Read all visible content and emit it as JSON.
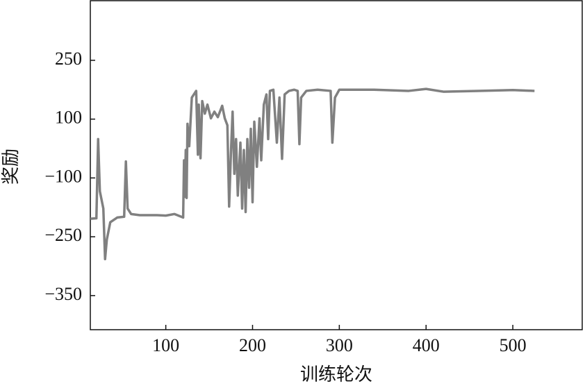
{
  "chart_data": {
    "type": "line",
    "x_label": "训练轮次",
    "y_label": "奖励",
    "xlim": [
      13,
      580
    ],
    "xticks": [
      100,
      200,
      300,
      400,
      500
    ],
    "ylim": [
      -408,
      402
    ],
    "yticks": [
      {
        "value": -350,
        "label": "−350"
      },
      {
        "value": -250,
        "label": "−250"
      },
      {
        "value": -100,
        "label": "−100"
      },
      {
        "value": 100,
        "label": "100"
      },
      {
        "value": 250,
        "label": "250"
      }
    ],
    "series": [
      {
        "color": "#808080",
        "x": [
          13,
          20,
          22,
          24,
          28,
          30,
          32,
          36,
          44,
          52,
          54,
          56,
          60,
          70,
          90,
          100,
          110,
          120,
          121,
          122,
          123,
          124,
          125,
          127,
          130,
          135,
          137,
          138,
          140,
          142,
          145,
          148,
          152,
          156,
          160,
          165,
          168,
          171,
          173,
          175,
          177,
          179,
          181,
          183,
          186,
          188,
          190,
          192,
          194,
          196,
          198,
          200,
          202,
          205,
          208,
          210,
          213,
          216,
          218,
          220,
          224,
          228,
          231,
          234,
          237,
          242,
          248,
          252,
          254,
          256,
          262,
          275,
          290,
          292,
          295,
          300,
          340,
          380,
          400,
          420,
          460,
          500,
          525
        ],
        "values": [
          -204,
          -203,
          32,
          -134,
          -178,
          -288,
          -255,
          -213,
          -201,
          -199,
          -44,
          -178,
          -192,
          -195,
          -195,
          -196,
          -192,
          -201,
          -40,
          -148,
          -5,
          -151,
          84,
          8,
          155,
          172,
          -21,
          137,
          -33,
          146,
          114,
          137,
          102,
          119,
          105,
          134,
          102,
          79,
          -173,
          -21,
          119,
          -86,
          32,
          -145,
          20,
          -178,
          -5,
          -187,
          32,
          -125,
          67,
          -162,
          91,
          -62,
          102,
          -40,
          137,
          163,
          32,
          172,
          175,
          20,
          155,
          -35,
          163,
          172,
          175,
          172,
          15,
          155,
          172,
          175,
          172,
          20,
          155,
          175,
          175,
          172,
          177,
          170,
          172,
          174,
          172
        ]
      }
    ]
  }
}
